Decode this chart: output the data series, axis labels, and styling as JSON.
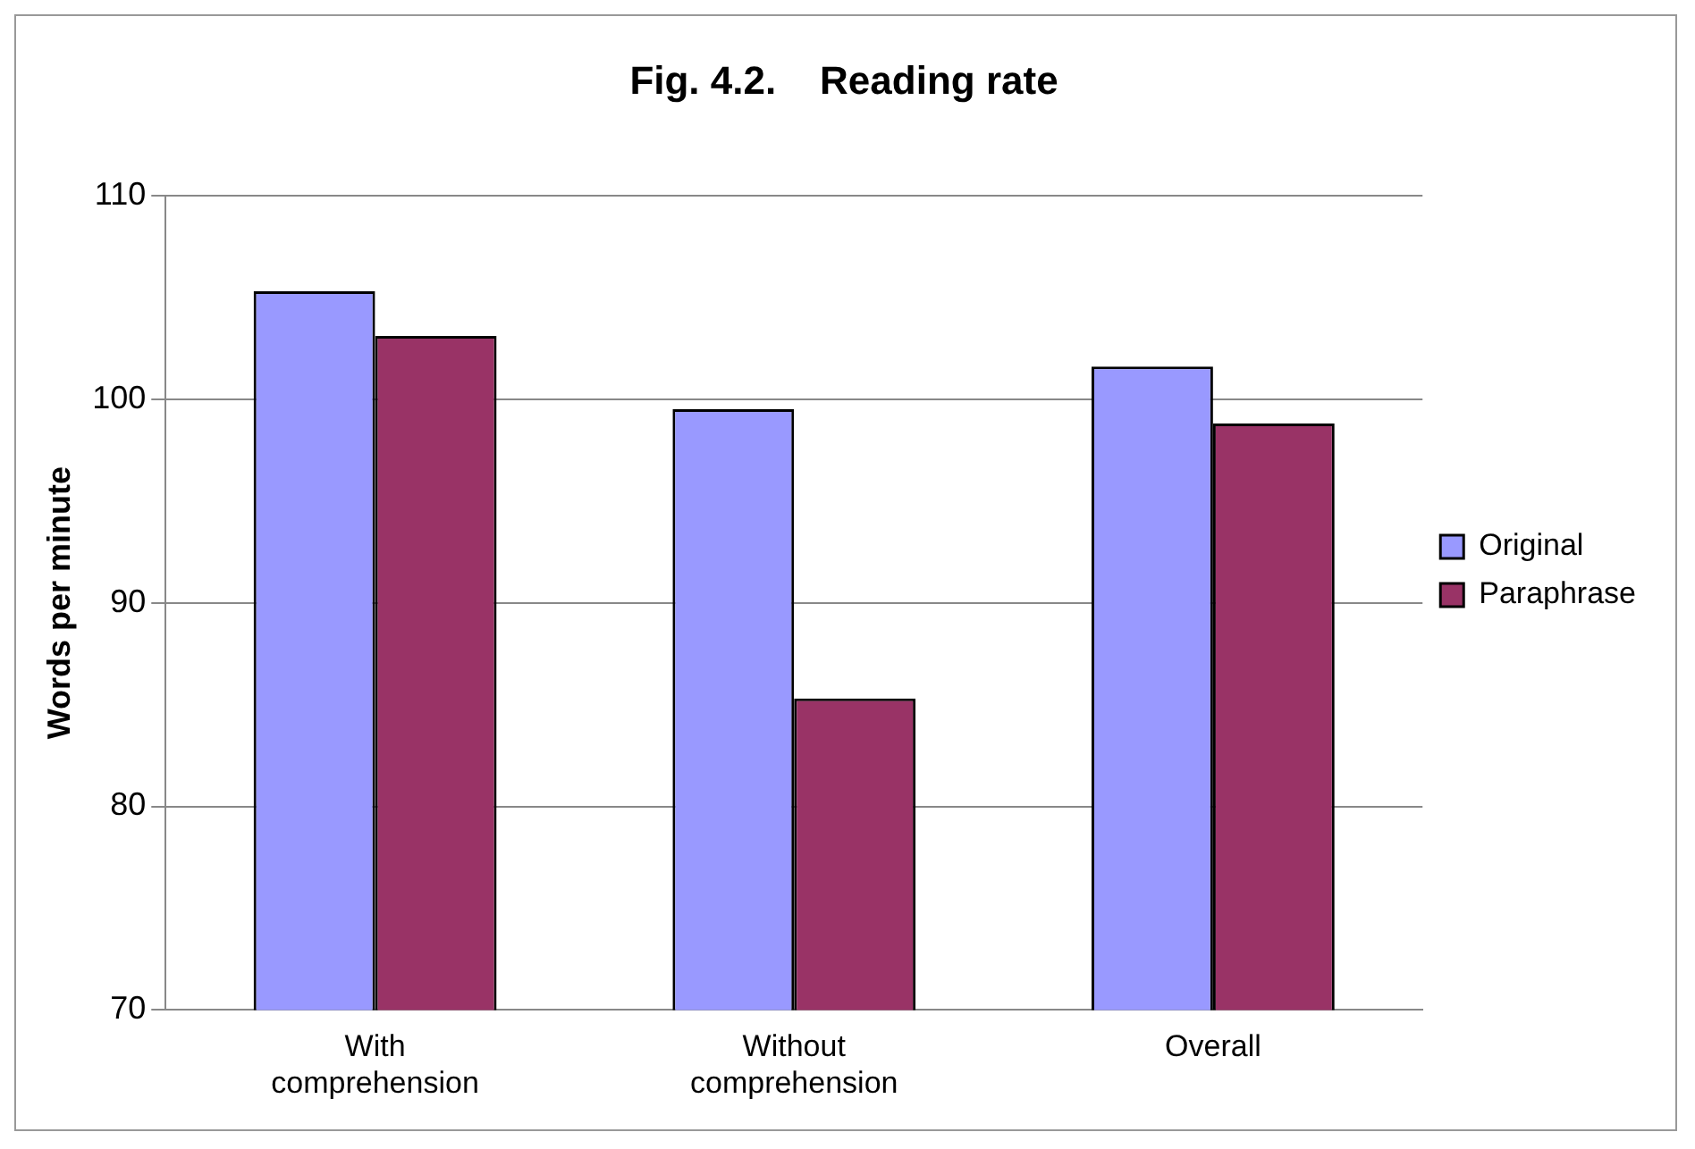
{
  "chart_data": {
    "type": "bar",
    "title": "Fig. 4.2.    Reading rate",
    "ylabel": "Words per minute",
    "categories": [
      "With comprehension",
      "Without comprehension",
      "Overall"
    ],
    "series": [
      {
        "name": "Original",
        "color": "#9999ff",
        "values": [
          105.3,
          99.5,
          101.6
        ]
      },
      {
        "name": "Paraphrase",
        "color": "#993366",
        "values": [
          103.1,
          85.3,
          98.8
        ]
      }
    ],
    "ylim": [
      70,
      110
    ],
    "yticks": [
      70,
      80,
      90,
      100,
      110
    ],
    "grid": "y",
    "legend": "right"
  }
}
